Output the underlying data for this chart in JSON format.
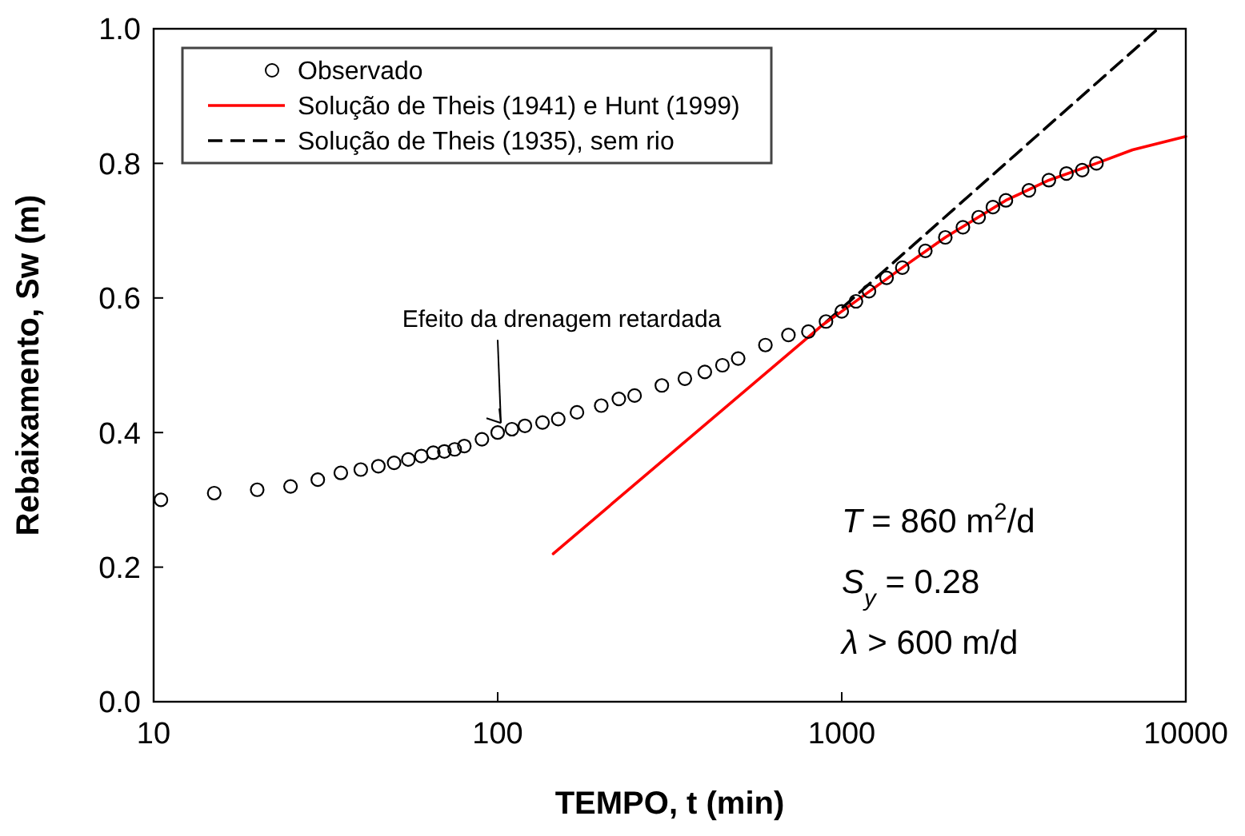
{
  "chart_data": {
    "type": "scatter",
    "xlabel": "TEMPO, t (min)",
    "ylabel": "Rebaixamento, Sw (m)",
    "log": "x",
    "xlim": [
      10,
      10000
    ],
    "xticks": [
      10,
      100,
      1000,
      10000
    ],
    "ylim": [
      0,
      1
    ],
    "yticks": [
      {
        "value": 0,
        "label": "0.0"
      },
      {
        "value": 0.2,
        "label": "0.2"
      },
      {
        "value": 0.4,
        "label": "0.4"
      },
      {
        "value": 0.6,
        "label": "0.6"
      },
      {
        "value": 0.8,
        "label": "0.8"
      },
      {
        "value": 1,
        "label": "1.0"
      }
    ],
    "grid": false,
    "legend": "top left",
    "series": [
      {
        "name": "Observado",
        "color": "#000000",
        "marker": "circle",
        "x": [
          10.5,
          15,
          20,
          25,
          30,
          35,
          40,
          45,
          50,
          55,
          60,
          65,
          70,
          75,
          80,
          90,
          100,
          110,
          120,
          135,
          150,
          170,
          200,
          225,
          250,
          300,
          350,
          400,
          450,
          500,
          600,
          700,
          800,
          900,
          1000,
          1100,
          1200,
          1350,
          1500,
          1750,
          2000,
          2250,
          2500,
          2750,
          3000,
          3500,
          4000,
          4500,
          5000,
          5500
        ],
        "values": [
          0.3,
          0.31,
          0.315,
          0.32,
          0.33,
          0.34,
          0.345,
          0.35,
          0.355,
          0.36,
          0.365,
          0.37,
          0.372,
          0.375,
          0.38,
          0.39,
          0.4,
          0.405,
          0.41,
          0.415,
          0.42,
          0.43,
          0.44,
          0.45,
          0.455,
          0.47,
          0.48,
          0.49,
          0.5,
          0.51,
          0.53,
          0.545,
          0.55,
          0.565,
          0.58,
          0.595,
          0.61,
          0.63,
          0.645,
          0.67,
          0.69,
          0.705,
          0.72,
          0.735,
          0.745,
          0.76,
          0.775,
          0.785,
          0.79,
          0.8
        ]
      },
      {
        "name": "Solução de Theis (1941) e Hunt (1999)",
        "type": "line",
        "color": "#ff0000",
        "line_style": "solid",
        "x": [
          145,
          880,
          1000,
          1500,
          2000,
          3000,
          4000,
          5500,
          7000,
          10000
        ],
        "values": [
          0.22,
          0.56,
          0.58,
          0.645,
          0.69,
          0.745,
          0.775,
          0.8,
          0.82,
          0.84
        ]
      },
      {
        "name": "Solução de Theis (1935), sem rio",
        "type": "line",
        "color": "#000000",
        "line_style": "dashed",
        "x": [
          900,
          8300
        ],
        "values": [
          0.564,
          1.0
        ]
      }
    ],
    "annotations": [
      {
        "text": "Efeito da drenagem retardada",
        "x": 100,
        "y": 0.4
      },
      "T = 860 m$^{2}$/d",
      "S$_{y}$ = 0.28",
      "λ > 600 m/d"
    ]
  }
}
